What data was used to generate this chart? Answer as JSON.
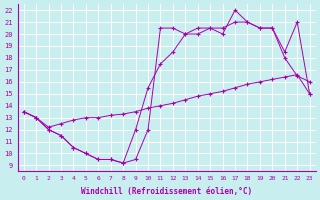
{
  "title": "",
  "xlabel": "Windchill (Refroidissement éolien,°C)",
  "ylabel": "",
  "bg_color": "#c8eef0",
  "line_color": "#aa00aa",
  "grid_color": "#ffffff",
  "xlim": [
    -0.5,
    23.5
  ],
  "ylim": [
    8.5,
    22.5
  ],
  "xticks": [
    0,
    1,
    2,
    3,
    4,
    5,
    6,
    7,
    8,
    9,
    10,
    11,
    12,
    13,
    14,
    15,
    16,
    17,
    18,
    19,
    20,
    21,
    22,
    23
  ],
  "yticks": [
    9,
    10,
    11,
    12,
    13,
    14,
    15,
    16,
    17,
    18,
    19,
    20,
    21,
    22
  ],
  "series1_x": [
    0,
    1,
    2,
    3,
    4,
    5,
    6,
    7,
    8,
    9,
    10,
    11,
    12,
    13,
    14,
    15,
    16,
    17,
    18,
    19,
    20,
    21,
    22,
    23
  ],
  "series1_y": [
    13.5,
    13.0,
    12.0,
    11.5,
    10.5,
    10.0,
    9.5,
    9.5,
    9.2,
    9.5,
    12.0,
    20.5,
    20.5,
    20.0,
    20.5,
    20.5,
    20.0,
    22.0,
    21.0,
    20.5,
    20.5,
    18.5,
    21.0,
    15.0
  ],
  "series2_x": [
    0,
    1,
    2,
    3,
    4,
    5,
    6,
    7,
    8,
    9,
    10,
    11,
    12,
    13,
    14,
    15,
    16,
    17,
    18,
    19,
    20,
    21,
    22,
    23
  ],
  "series2_y": [
    13.5,
    13.0,
    12.0,
    11.5,
    10.5,
    10.0,
    9.5,
    9.5,
    9.2,
    12.0,
    15.5,
    17.5,
    18.5,
    20.0,
    20.0,
    20.5,
    20.5,
    21.0,
    21.0,
    20.5,
    20.5,
    18.0,
    16.5,
    16.0
  ],
  "series3_x": [
    0,
    1,
    2,
    3,
    4,
    5,
    6,
    7,
    8,
    9,
    10,
    11,
    12,
    13,
    14,
    15,
    16,
    17,
    18,
    19,
    20,
    21,
    22,
    23
  ],
  "series3_y": [
    13.5,
    13.0,
    12.2,
    12.5,
    12.8,
    13.0,
    13.0,
    13.2,
    13.3,
    13.5,
    13.8,
    14.0,
    14.2,
    14.5,
    14.8,
    15.0,
    15.2,
    15.5,
    15.8,
    16.0,
    16.2,
    16.4,
    16.6,
    15.0
  ]
}
